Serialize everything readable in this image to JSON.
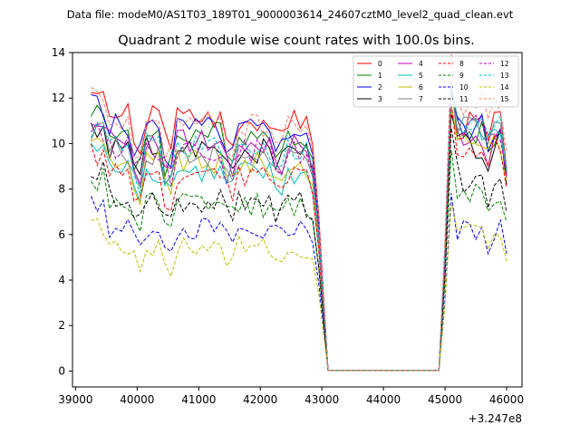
{
  "header": {
    "datafile": "Data file: modeM0/AS1T03_189T01_9000003614_24607cztM0_level2_quad_clean.evt"
  },
  "chart_data": {
    "type": "line",
    "title": "Quadrant 2 module wise count rates with 100.0s bins.",
    "xlabel": "",
    "ylabel": "",
    "x_offset_label": "+3.247e8",
    "xlim": [
      38950,
      46250
    ],
    "ylim": [
      -0.7,
      14.0
    ],
    "xticks": [
      39000,
      40000,
      41000,
      42000,
      43000,
      44000,
      45000,
      46000
    ],
    "xtick_labels": [
      "39000",
      "40000",
      "41000",
      "42000",
      "43000",
      "44000",
      "45000",
      "46000"
    ],
    "yticks": [
      0,
      2,
      4,
      6,
      8,
      10,
      12,
      14
    ],
    "ytick_labels": [
      "0",
      "2",
      "4",
      "6",
      "8",
      "10",
      "12",
      "14"
    ],
    "legend_position": "upper-right",
    "gap": [
      43000,
      44900
    ],
    "series": [
      {
        "name": "0",
        "color": "#ff0000",
        "dash": "solid",
        "base1": 11.3,
        "base2": 10.8
      },
      {
        "name": "1",
        "color": "#008000",
        "dash": "solid",
        "base1": 10.6,
        "base2": 10.5
      },
      {
        "name": "2",
        "color": "#0000ff",
        "dash": "solid",
        "base1": 10.8,
        "base2": 10.7
      },
      {
        "name": "3",
        "color": "#000000",
        "dash": "solid",
        "base1": 9.9,
        "base2": 10.0
      },
      {
        "name": "4",
        "color": "#bf00bf",
        "dash": "solid",
        "base1": 10.2,
        "base2": 10.4
      },
      {
        "name": "5",
        "color": "#00bfbf",
        "dash": "solid",
        "base1": 8.9,
        "base2": 10.6
      },
      {
        "name": "6",
        "color": "#bfbf00",
        "dash": "solid",
        "base1": 9.3,
        "base2": 10.2
      },
      {
        "name": "7",
        "color": "#808080",
        "dash": "solid",
        "base1": 9.7,
        "base2": 10.6
      },
      {
        "name": "8",
        "color": "#ff0000",
        "dash": "dashed",
        "base1": 8.8,
        "base2": 9.8
      },
      {
        "name": "9",
        "color": "#008000",
        "dash": "dashed",
        "base1": 7.5,
        "base2": 8.0
      },
      {
        "name": "10",
        "color": "#0000ff",
        "dash": "dashed",
        "base1": 6.4,
        "base2": 6.3
      },
      {
        "name": "11",
        "color": "#000000",
        "dash": "dashed",
        "base1": 7.6,
        "base2": 8.5
      },
      {
        "name": "12",
        "color": "#bf00bf",
        "dash": "dashed",
        "base1": 9.9,
        "base2": 10.6
      },
      {
        "name": "13",
        "color": "#00bfbf",
        "dash": "dashed",
        "base1": 10.0,
        "base2": 10.8
      },
      {
        "name": "14",
        "color": "#bfbf00",
        "dash": "dashed",
        "base1": 5.6,
        "base2": 5.9
      },
      {
        "name": "15",
        "color": "#fa8072",
        "dash": "dashed",
        "base1": 11.0,
        "base2": 11.8
      }
    ]
  }
}
